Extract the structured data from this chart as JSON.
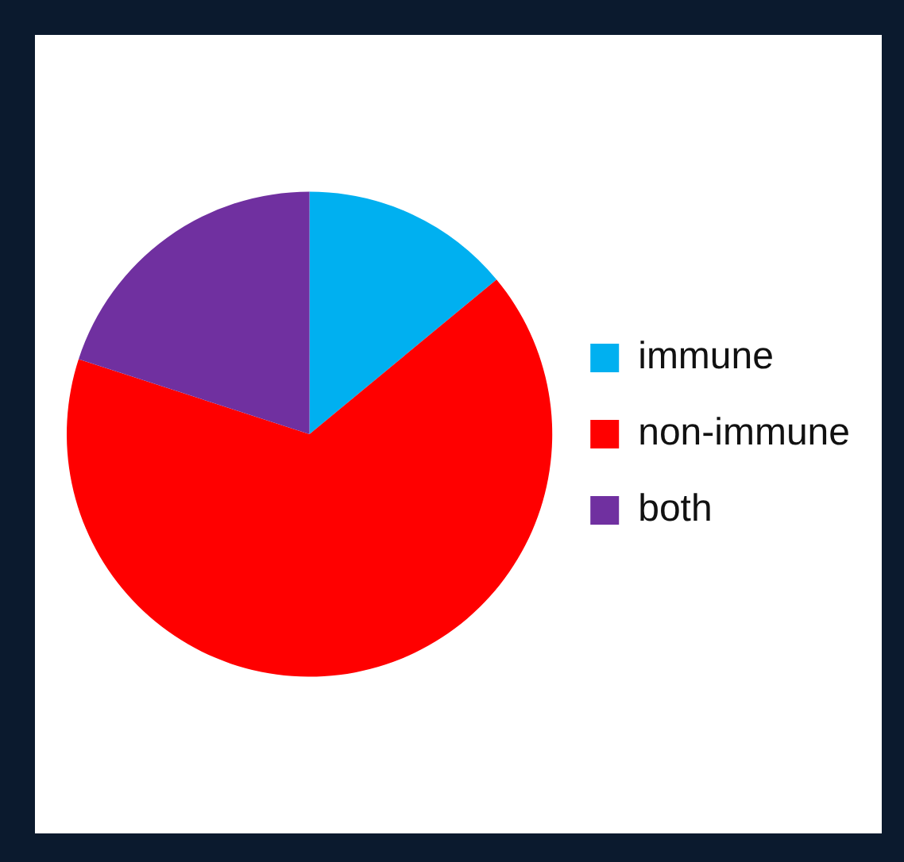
{
  "chart_data": {
    "type": "pie",
    "categories": [
      "immune",
      "non-immune",
      "both"
    ],
    "values": [
      14,
      66,
      20
    ],
    "colors": [
      "#00b0f0",
      "#ff0000",
      "#7030a0"
    ],
    "legend": "right"
  }
}
